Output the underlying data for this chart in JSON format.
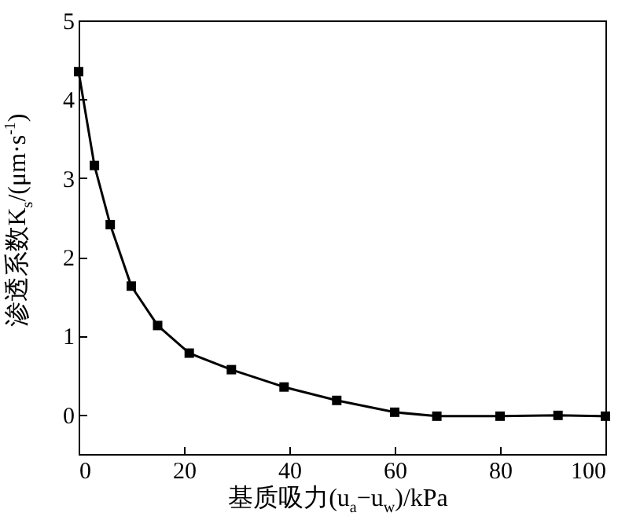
{
  "chart_data": {
    "type": "line",
    "xlabel": "基质吸力(u$_{a}$−u$_{w}$)/kPa",
    "ylabel": "渗透系数K$_{s}$/(μm·s$^{-1}$)",
    "x": [
      0,
      3,
      6,
      10,
      15,
      21,
      29,
      39,
      49,
      60,
      68,
      80,
      91,
      100
    ],
    "series": [
      {
        "color": "#000000",
        "values": [
          4.35,
          3.16,
          2.41,
          1.63,
          1.13,
          0.78,
          0.57,
          0.35,
          0.18,
          0.03,
          -0.02,
          -0.02,
          -0.01,
          -0.02
        ]
      }
    ],
    "xlim": [
      0,
      100
    ],
    "xticks": [
      0,
      20,
      40,
      60,
      80,
      100
    ],
    "ylim": [
      -0.5,
      5
    ],
    "yticks": [
      0,
      1,
      2,
      3,
      4,
      5
    ],
    "grid": false,
    "marker": "square",
    "line_style": "solid"
  }
}
